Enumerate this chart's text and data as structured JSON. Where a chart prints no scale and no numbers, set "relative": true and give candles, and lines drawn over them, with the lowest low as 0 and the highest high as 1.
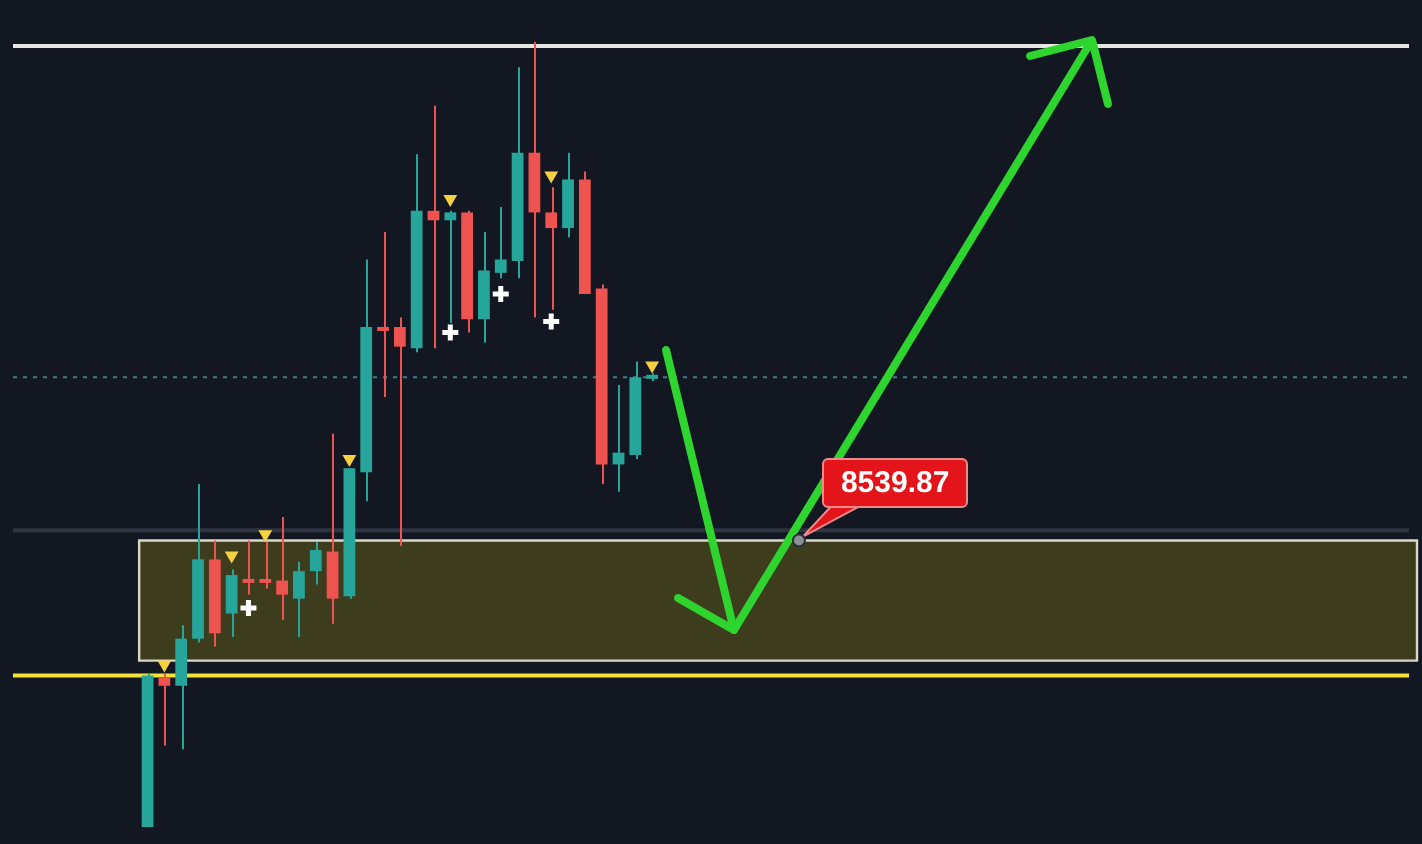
{
  "chart_data": {
    "type": "candlestick",
    "relative": true,
    "tick_labels": false,
    "categories": [
      null,
      null,
      null,
      null,
      null,
      null,
      null,
      null,
      null,
      null,
      null,
      null,
      null,
      null,
      null,
      null,
      null,
      null,
      null,
      null,
      null,
      null,
      null,
      null,
      null,
      null,
      null,
      null,
      null,
      null,
      null,
      null,
      null,
      null,
      null,
      null,
      null,
      null,
      null,
      null,
      null,
      null,
      null,
      null,
      null,
      null,
      null,
      null,
      null,
      null,
      null,
      null,
      null,
      null,
      null,
      null,
      null,
      null,
      null,
      null,
      null,
      null,
      null,
      null,
      null,
      null,
      null,
      null,
      null,
      null,
      null,
      null,
      null,
      null,
      null,
      null,
      null,
      null,
      null,
      null,
      null,
      null,
      null,
      null
    ],
    "ohlc": [
      null,
      null,
      null,
      null,
      null,
      null,
      null,
      null,
      [
        0.0,
        0.195,
        0.0,
        0.193
      ],
      [
        0.19,
        0.195,
        0.104,
        0.18
      ],
      [
        0.18,
        0.257,
        0.099,
        0.24
      ],
      [
        0.24,
        0.437,
        0.235,
        0.341
      ],
      [
        0.341,
        0.365,
        0.23,
        0.247
      ],
      [
        0.272,
        0.328,
        0.242,
        0.321
      ],
      [
        0.316,
        0.365,
        0.296,
        0.311
      ],
      [
        0.316,
        0.363,
        0.304,
        0.311
      ],
      [
        0.314,
        0.395,
        0.264,
        0.296
      ],
      [
        0.291,
        0.338,
        0.242,
        0.326
      ],
      [
        0.326,
        0.363,
        0.309,
        0.353
      ],
      [
        0.351,
        0.501,
        0.259,
        0.291
      ],
      [
        0.294,
        0.457,
        0.291,
        0.457
      ],
      [
        0.452,
        0.723,
        0.415,
        0.637
      ],
      [
        0.637,
        0.758,
        0.548,
        0.632
      ],
      [
        0.637,
        0.649,
        0.358,
        0.612
      ],
      [
        0.61,
        0.857,
        0.605,
        0.785
      ],
      [
        0.785,
        0.919,
        0.61,
        0.773
      ],
      [
        0.773,
        0.785,
        0.642,
        0.783
      ],
      [
        0.783,
        0.785,
        0.63,
        0.647
      ],
      [
        0.647,
        0.758,
        0.617,
        0.709
      ],
      [
        0.706,
        0.79,
        0.699,
        0.723
      ],
      [
        0.721,
        0.968,
        0.699,
        0.859
      ],
      [
        0.859,
        1.0,
        0.649,
        0.783
      ],
      [
        0.783,
        0.815,
        0.659,
        0.763
      ],
      [
        0.763,
        0.859,
        0.751,
        0.825
      ],
      [
        0.825,
        0.835,
        0.679,
        0.679
      ],
      [
        0.686,
        0.691,
        0.437,
        0.462
      ],
      [
        0.462,
        0.563,
        0.427,
        0.477
      ],
      [
        0.474,
        0.593,
        0.469,
        0.573
      ],
      [
        0.571,
        0.578,
        0.568,
        0.575
      ],
      null,
      null,
      null,
      null,
      null,
      null,
      null,
      null,
      null,
      null,
      null,
      null,
      null,
      null,
      null,
      null,
      null,
      null,
      null,
      null,
      null,
      null,
      null,
      null,
      null,
      null,
      null,
      null,
      null,
      null,
      null,
      null,
      null,
      null,
      null,
      null,
      null,
      null,
      null,
      null,
      null,
      null,
      null,
      null,
      null
    ],
    "colors": [
      null,
      null,
      null,
      null,
      null,
      null,
      null,
      null,
      "#26a69a",
      "#ef5350",
      "#26a69a",
      "#26a69a",
      "#ef5350",
      "#26a69a",
      "#ef5350",
      "#ef5350",
      "#ef5350",
      "#26a69a",
      "#26a69a",
      "#ef5350",
      "#26a69a",
      "#26a69a",
      "#ef5350",
      "#ef5350",
      "#26a69a",
      "#ef5350",
      "#26a69a",
      "#ef5350",
      "#26a69a",
      "#26a69a",
      "#26a69a",
      "#ef5350",
      "#ef5350",
      "#26a69a",
      "#ef5350",
      "#ef5350",
      "#26a69a",
      "#26a69a",
      "#26a69a",
      null,
      null,
      null,
      null,
      null,
      null,
      null,
      null,
      null,
      null,
      null,
      null,
      null,
      null,
      null,
      null,
      null,
      null,
      null,
      null,
      null,
      null,
      null,
      null,
      null,
      null,
      null,
      null,
      null,
      null,
      null,
      null,
      null,
      null,
      null,
      null,
      null,
      null,
      null,
      null,
      null,
      null,
      null,
      null,
      null
    ],
    "series": [
      {
        "type": "scatter",
        "marker": "triangle",
        "color": "#f5d142",
        "values": [
          null,
          null,
          null,
          null,
          null,
          null,
          null,
          null,
          null,
          0.207,
          null,
          null,
          null,
          0.346,
          null,
          0.373,
          null,
          null,
          null,
          null,
          0.469,
          null,
          null,
          null,
          null,
          null,
          0.8,
          null,
          null,
          null,
          null,
          null,
          0.83,
          null,
          null,
          null,
          null,
          null,
          0.588,
          null,
          null,
          null,
          null,
          null,
          null,
          null,
          null,
          null,
          null,
          null,
          null,
          null,
          null,
          null,
          null,
          null,
          null,
          null,
          null,
          null,
          null,
          null,
          null,
          null,
          null,
          null,
          null,
          null,
          null,
          null,
          null,
          null,
          null,
          null,
          null,
          null,
          null,
          null,
          null,
          null,
          null,
          null,
          null,
          null
        ]
      },
      {
        "type": "scatter",
        "marker": "cross",
        "color": "#ffffff",
        "values": [
          null,
          null,
          null,
          null,
          null,
          null,
          null,
          null,
          null,
          null,
          null,
          null,
          null,
          null,
          0.279,
          null,
          null,
          null,
          null,
          null,
          null,
          null,
          null,
          null,
          null,
          null,
          0.63,
          null,
          null,
          0.679,
          null,
          null,
          0.644,
          null,
          null,
          null,
          null,
          null,
          null,
          null,
          null,
          null,
          null,
          null,
          null,
          null,
          null,
          null,
          null,
          null,
          null,
          null,
          null,
          null,
          null,
          null,
          null,
          null,
          null,
          null,
          null,
          null,
          null,
          null,
          null,
          null,
          null,
          null,
          null,
          null,
          null,
          null,
          null,
          null,
          null,
          null,
          null,
          null,
          null,
          null,
          null,
          null,
          null,
          null
        ]
      }
    ],
    "ref_lines": [
      {
        "axis": "y",
        "value": 0.995,
        "color": "#e6e6e6",
        "line_style": "solid"
      },
      {
        "axis": "y",
        "value": 0.193,
        "color": "#f2e33a",
        "line_style": "solid"
      },
      {
        "axis": "y",
        "value": 0.573,
        "color": "#3f7f8f",
        "line_style": "dotted"
      },
      {
        "axis": "y",
        "value": 0.378,
        "color": "#2e3442",
        "line_style": "solid"
      }
    ],
    "bands": [
      {
        "axis": "y",
        "from": 0.212,
        "to": 0.365,
        "color": "#3d3d1e"
      }
    ],
    "annotations": [
      {
        "text": "8539.87",
        "y": 0.365
      }
    ]
  }
}
